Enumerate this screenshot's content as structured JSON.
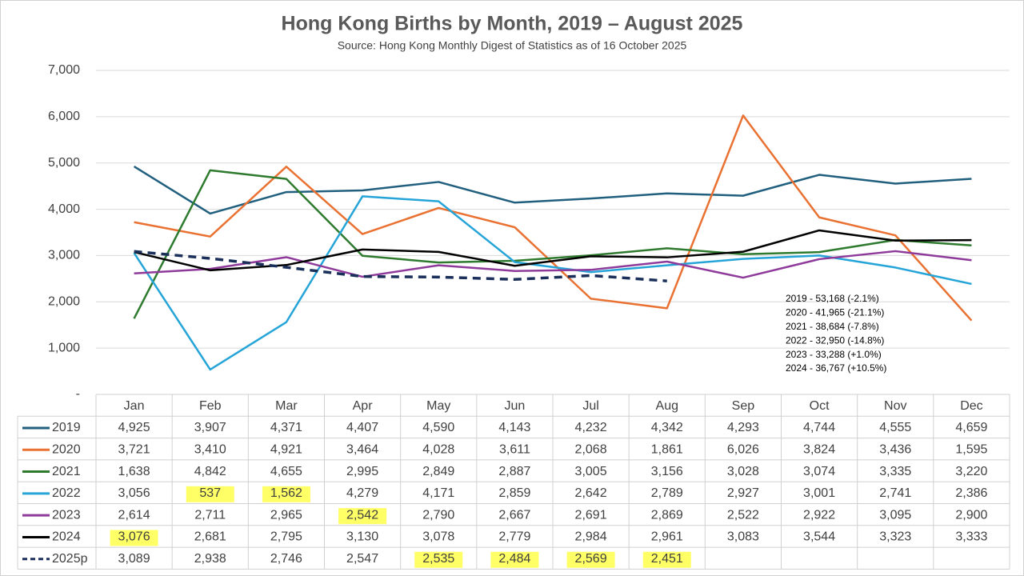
{
  "chart_data": {
    "type": "line",
    "title": "Hong Kong Births by Month, 2019 – August 2025",
    "subtitle": "Source: Hong Kong Monthly Digest of Statistics as of 16 October 2025",
    "categories": [
      "Jan",
      "Feb",
      "Mar",
      "Apr",
      "May",
      "Jun",
      "Jul",
      "Aug",
      "Sep",
      "Oct",
      "Nov",
      "Dec"
    ],
    "ylim": [
      0,
      7000
    ],
    "yticks": [
      {
        "value": 0,
        "label": "-"
      },
      {
        "value": 1000,
        "label": "1,000"
      },
      {
        "value": 2000,
        "label": "2,000"
      },
      {
        "value": 3000,
        "label": "3,000"
      },
      {
        "value": 4000,
        "label": "4,000"
      },
      {
        "value": 5000,
        "label": "5,000"
      },
      {
        "value": 6000,
        "label": "6,000"
      },
      {
        "value": 7000,
        "label": "7,000"
      }
    ],
    "grid": true,
    "highlight_color": "#ffff66",
    "series": [
      {
        "name": "2019",
        "color": "#215f7f",
        "values": [
          4925,
          3907,
          4371,
          4407,
          4590,
          4143,
          4232,
          4342,
          4293,
          4744,
          4555,
          4659
        ],
        "value_labels": [
          "4,925",
          "3,907",
          "4,371",
          "4,407",
          "4,590",
          "4,143",
          "4,232",
          "4,342",
          "4,293",
          "4,744",
          "4,555",
          "4,659"
        ]
      },
      {
        "name": "2020",
        "color": "#e97132",
        "values": [
          3721,
          3410,
          4921,
          3464,
          4028,
          3611,
          2068,
          1861,
          6026,
          3824,
          3436,
          1595
        ],
        "value_labels": [
          "3,721",
          "3,410",
          "4,921",
          "3,464",
          "4,028",
          "3,611",
          "2,068",
          "1,861",
          "6,026",
          "3,824",
          "3,436",
          "1,595"
        ]
      },
      {
        "name": "2021",
        "color": "#2e7a2e",
        "values": [
          1638,
          4842,
          4655,
          2995,
          2849,
          2887,
          3005,
          3156,
          3028,
          3074,
          3335,
          3220
        ],
        "value_labels": [
          "1,638",
          "4,842",
          "4,655",
          "2,995",
          "2,849",
          "2,887",
          "3,005",
          "3,156",
          "3,028",
          "3,074",
          "3,335",
          "3,220"
        ]
      },
      {
        "name": "2022",
        "color": "#25a4d8",
        "values": [
          3056,
          537,
          1562,
          4279,
          4171,
          2859,
          2642,
          2789,
          2927,
          3001,
          2741,
          2386
        ],
        "value_labels": [
          "3,056",
          "537",
          "1,562",
          "4,279",
          "4,171",
          "2,859",
          "2,642",
          "2,789",
          "2,927",
          "3,001",
          "2,741",
          "2,386"
        ],
        "highlights": [
          1,
          2
        ]
      },
      {
        "name": "2023",
        "color": "#8e3a9a",
        "values": [
          2614,
          2711,
          2965,
          2542,
          2790,
          2667,
          2691,
          2869,
          2522,
          2922,
          3095,
          2900
        ],
        "value_labels": [
          "2,614",
          "2,711",
          "2,965",
          "2,542",
          "2,790",
          "2,667",
          "2,691",
          "2,869",
          "2,522",
          "2,922",
          "3,095",
          "2,900"
        ],
        "highlights": [
          3
        ]
      },
      {
        "name": "2024",
        "color": "#000000",
        "values": [
          3076,
          2681,
          2795,
          3130,
          3078,
          2779,
          2984,
          2961,
          3083,
          3544,
          3323,
          3333
        ],
        "value_labels": [
          "3,076",
          "2,681",
          "2,795",
          "3,130",
          "3,078",
          "2,779",
          "2,984",
          "2,961",
          "3,083",
          "3,544",
          "3,323",
          "3,333"
        ],
        "highlights": [
          0
        ]
      },
      {
        "name": "2025p",
        "color": "#1a2f5a",
        "dash": true,
        "values": [
          3089,
          2938,
          2746,
          2547,
          2535,
          2484,
          2569,
          2451,
          null,
          null,
          null,
          null
        ],
        "value_labels": [
          "3,089",
          "2,938",
          "2,746",
          "2,547",
          "2,535",
          "2,484",
          "2,569",
          "2,451",
          null,
          null,
          null,
          null
        ],
        "highlights": [
          4,
          5,
          6,
          7
        ]
      }
    ],
    "annotations": [
      "2019 - 53,168 (-2.1%)",
      "2020 - 41,965 (-21.1%)",
      "2021 - 38,684 (-7.8%)",
      "2022 - 32,950 (-14.8%)",
      "2023 - 33,288 (+1.0%)",
      "2024 - 36,767 (+10.5%)"
    ]
  }
}
